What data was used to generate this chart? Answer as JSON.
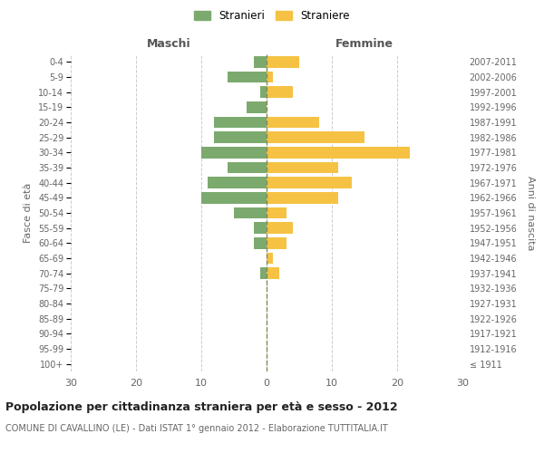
{
  "age_groups": [
    "100+",
    "95-99",
    "90-94",
    "85-89",
    "80-84",
    "75-79",
    "70-74",
    "65-69",
    "60-64",
    "55-59",
    "50-54",
    "45-49",
    "40-44",
    "35-39",
    "30-34",
    "25-29",
    "20-24",
    "15-19",
    "10-14",
    "5-9",
    "0-4"
  ],
  "birth_years": [
    "≤ 1911",
    "1912-1916",
    "1917-1921",
    "1922-1926",
    "1927-1931",
    "1932-1936",
    "1937-1941",
    "1942-1946",
    "1947-1951",
    "1952-1956",
    "1957-1961",
    "1962-1966",
    "1967-1971",
    "1972-1976",
    "1977-1981",
    "1982-1986",
    "1987-1991",
    "1992-1996",
    "1997-2001",
    "2002-2006",
    "2007-2011"
  ],
  "maschi": [
    0,
    0,
    0,
    0,
    0,
    0,
    1,
    0,
    2,
    2,
    5,
    10,
    9,
    6,
    10,
    8,
    8,
    3,
    1,
    6,
    2
  ],
  "femmine": [
    0,
    0,
    0,
    0,
    0,
    0,
    2,
    1,
    3,
    4,
    3,
    11,
    13,
    11,
    22,
    15,
    8,
    0,
    4,
    1,
    5
  ],
  "maschi_color": "#7caa6e",
  "femmine_color": "#f5c244",
  "title": "Popolazione per cittadinanza straniera per età e sesso - 2012",
  "subtitle": "COMUNE DI CAVALLINO (LE) - Dati ISTAT 1° gennaio 2012 - Elaborazione TUTTITALIA.IT",
  "ylabel_left": "Fasce di età",
  "ylabel_right": "Anni di nascita",
  "xlabel_maschi": "Maschi",
  "xlabel_femmine": "Femmine",
  "legend_maschi": "Stranieri",
  "legend_femmine": "Straniere",
  "xlim": 30,
  "background_color": "#ffffff",
  "grid_color": "#cccccc",
  "bar_height": 0.75
}
